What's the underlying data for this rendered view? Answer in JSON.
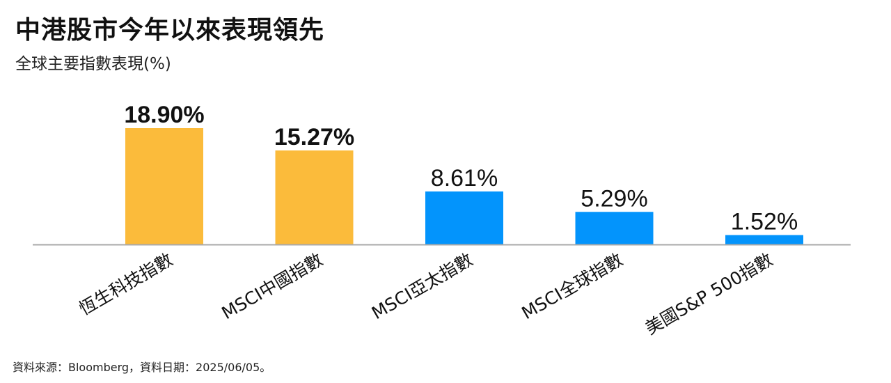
{
  "header": {
    "title": "中港股市今年以來表現領先",
    "subtitle": "全球主要指數表現(%)"
  },
  "footer": {
    "source": "資料來源：Bloomberg，資料日期：2025/06/05。"
  },
  "colors": {
    "highlight": "#FBBB3B",
    "standard": "#0394FC",
    "axis": "#AAAAAA"
  },
  "chart_data": {
    "type": "bar",
    "categories": [
      "恆生科技指數",
      "MSCI中國指數",
      "MSCI亞太指數",
      "MSCI全球指數",
      "美國S&P 500指數"
    ],
    "values": [
      18.9,
      15.27,
      8.61,
      5.29,
      1.52
    ],
    "value_labels": [
      "18.90%",
      "15.27%",
      "8.61%",
      "5.29%",
      "1.52%"
    ],
    "highlighted": [
      true,
      true,
      false,
      false,
      false
    ],
    "ylim": [
      0,
      20
    ],
    "grid": false,
    "legend": "none"
  }
}
